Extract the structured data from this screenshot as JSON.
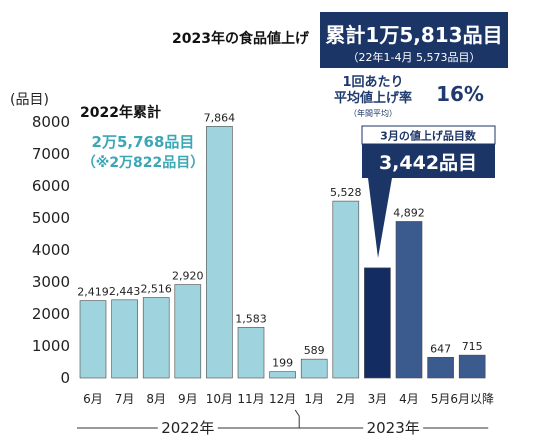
{
  "chart_data": {
    "type": "bar",
    "yunit": "(品目)",
    "yticks": [
      0,
      1000,
      2000,
      3000,
      4000,
      5000,
      6000,
      7000,
      8000
    ],
    "ylim": [
      0,
      8000
    ],
    "categories": [
      "6月",
      "7月",
      "8月",
      "9月",
      "10月",
      "11月",
      "12月",
      "1月",
      "2月",
      "3月",
      "4月",
      "5月",
      "6月以降"
    ],
    "values": [
      2419,
      2443,
      2516,
      2920,
      7864,
      1583,
      199,
      589,
      5528,
      3442,
      4892,
      647,
      715
    ],
    "value_labels": [
      "2,419",
      "2,443",
      "2,516",
      "2,920",
      "7,864",
      "1,583",
      "199",
      "589",
      "5,528",
      "3,442",
      "4,892",
      "647",
      "715"
    ],
    "show_value_label": [
      true,
      true,
      true,
      true,
      true,
      true,
      true,
      true,
      true,
      false,
      true,
      true,
      true
    ],
    "bar_colors": [
      "#9fd3dd",
      "#9fd3dd",
      "#9fd3dd",
      "#9fd3dd",
      "#9fd3dd",
      "#9fd3dd",
      "#9fd3dd",
      "#9fd3dd",
      "#9fd3dd",
      "#132d63",
      "#3b5b8e",
      "#3b5b8e",
      "#3b5b8e"
    ],
    "year_groups": [
      {
        "label": "2022年",
        "start": 0,
        "end": 6
      },
      {
        "label": "2023年",
        "start": 7,
        "end": 12
      }
    ],
    "annotations": {
      "title_2023": "2023年の食品値上げ",
      "total_2023": "累計1万5,813品目",
      "total_2023_sub": "（22年1-4月 5,573品目）",
      "avg_rate_label_1": "1回あたり",
      "avg_rate_label_2": "平均値上げ率",
      "avg_rate_note": "（年間平均）",
      "avg_rate_value": "16%",
      "march_title": "3月の値上げ品目数",
      "march_value": "3,442品目",
      "total_2022_title": "2022年累計",
      "total_2022_value": "2万5,768品目",
      "total_2022_sub": "（※2万822品目）"
    },
    "colors": {
      "light_bar": "#9fd3dd",
      "march_bar": "#132d63",
      "mid_bar": "#3b5b8e",
      "teal_text": "#3ba7b5",
      "navy_box": "#1c3567",
      "rate_text": "#1f3a6e"
    }
  }
}
